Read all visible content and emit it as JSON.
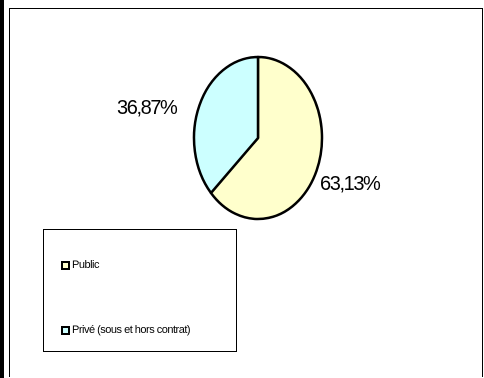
{
  "chart_data": {
    "type": "pie",
    "title": "",
    "categories": [
      "Public",
      "Privé (sous et hors contrat)"
    ],
    "values": [
      63.13,
      36.87
    ],
    "data_labels": [
      "63,13%",
      "36,87%"
    ],
    "colors": [
      "#ffffcc",
      "#ccffff"
    ],
    "legend": {
      "placement": "bottom-left",
      "entries": [
        "Public",
        "Privé (sous et hors contrat)"
      ]
    },
    "start": "top, clockwise"
  }
}
